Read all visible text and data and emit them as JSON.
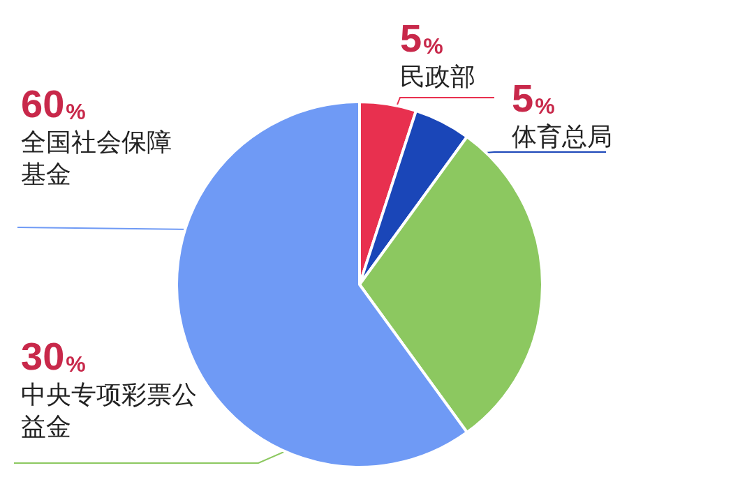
{
  "chart_data": {
    "type": "pie",
    "categories": [
      "民政部",
      "体育总局",
      "中央专项彩票公益金",
      "全国社会保障基金"
    ],
    "values": [
      5,
      5,
      30,
      60
    ],
    "value_labels": [
      "5%",
      "5%",
      "30%",
      "60%"
    ],
    "colors": [
      "#e8304f",
      "#1a46b8",
      "#8cc860",
      "#6f9af5"
    ],
    "legend": false
  }
}
